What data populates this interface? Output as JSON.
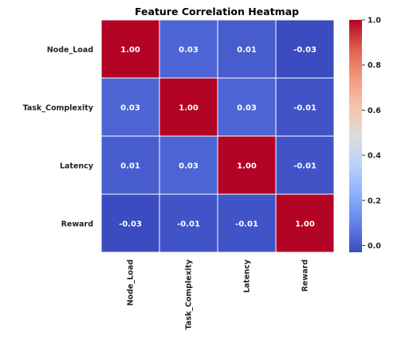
{
  "chart_data": {
    "type": "heatmap",
    "title": "Feature Correlation Heatmap",
    "rows": [
      "Node_Load",
      "Task_Complexity",
      "Latency",
      "Reward"
    ],
    "columns": [
      "Node_Load",
      "Task_Complexity",
      "Latency",
      "Reward"
    ],
    "values": [
      [
        1.0,
        0.03,
        0.01,
        -0.03
      ],
      [
        0.03,
        1.0,
        0.03,
        -0.01
      ],
      [
        0.01,
        0.03,
        1.0,
        -0.01
      ],
      [
        -0.03,
        -0.01,
        -0.01,
        1.0
      ]
    ],
    "value_format_decimals": 2,
    "colorbar": {
      "min": -0.03,
      "max": 1.0,
      "ticks": [
        0.0,
        0.2,
        0.4,
        0.6,
        0.8,
        1.0
      ],
      "tick_labels": [
        "0.0",
        "0.2",
        "0.4",
        "0.6",
        "0.8",
        "1.0"
      ],
      "colormap": "coolwarm"
    },
    "grid_lines": true,
    "legend": "right"
  }
}
